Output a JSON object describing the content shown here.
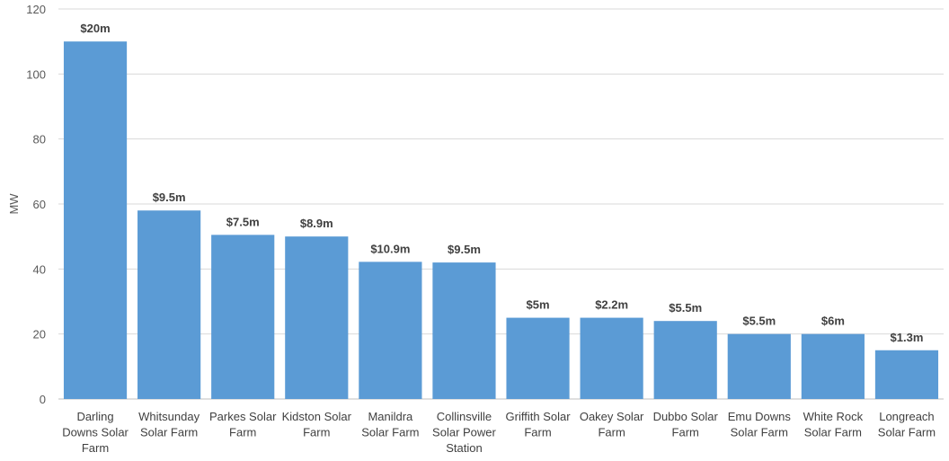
{
  "chart_data": {
    "type": "bar",
    "title": "",
    "xlabel": "",
    "ylabel": "MW",
    "ylim": [
      0,
      120
    ],
    "y_ticks": [
      0,
      20,
      40,
      60,
      80,
      100,
      120
    ],
    "grid": true,
    "bar_color": "#5b9bd5",
    "categories": [
      [
        "Darling",
        "Downs Solar",
        "Farm"
      ],
      [
        "Whitsunday",
        "Solar Farm"
      ],
      [
        "Parkes Solar",
        "Farm"
      ],
      [
        "Kidston Solar",
        "Farm"
      ],
      [
        "Manildra",
        "Solar Farm"
      ],
      [
        "Collinsville",
        "Solar Power",
        "Station"
      ],
      [
        "Griffith Solar",
        "Farm"
      ],
      [
        "Oakey Solar",
        "Farm"
      ],
      [
        "Dubbo Solar",
        "Farm"
      ],
      [
        "Emu Downs",
        "Solar Farm"
      ],
      [
        "White Rock",
        "Solar Farm"
      ],
      [
        "Longreach",
        "Solar Farm"
      ]
    ],
    "values": [
      110,
      58,
      50.5,
      50,
      42.2,
      42,
      25,
      25,
      24,
      20,
      20,
      15
    ],
    "data_labels": [
      "$20m",
      "$9.5m",
      "$7.5m",
      "$8.9m",
      "$10.9m",
      "$9.5m",
      "$5m",
      "$2.2m",
      "$5.5m",
      "$5.5m",
      "$6m",
      "$1.3m"
    ]
  }
}
